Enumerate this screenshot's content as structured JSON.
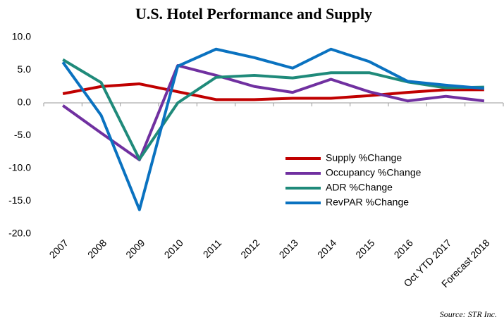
{
  "chart_data": {
    "type": "line",
    "title": "U.S. Hotel Performance and Supply",
    "source": "Source: STR Inc.",
    "categories": [
      "2007",
      "2008",
      "2009",
      "2010",
      "2011",
      "2012",
      "2013",
      "2014",
      "2015",
      "2016",
      "Oct YTD 2017",
      "Forecast 2018"
    ],
    "series": [
      {
        "name": "Supply %Change",
        "color": "#c00000",
        "values": [
          1.4,
          2.5,
          2.9,
          1.7,
          0.5,
          0.5,
          0.7,
          0.7,
          1.1,
          1.6,
          2.0,
          2.0
        ]
      },
      {
        "name": "Occupancy %Change",
        "color": "#7030a0",
        "values": [
          -0.4,
          -4.6,
          -8.7,
          5.7,
          4.2,
          2.5,
          1.6,
          3.6,
          1.7,
          0.3,
          1.0,
          0.3
        ]
      },
      {
        "name": "ADR %Change",
        "color": "#1f8a7a",
        "values": [
          6.6,
          3.1,
          -8.6,
          0.0,
          3.9,
          4.2,
          3.8,
          4.6,
          4.6,
          3.2,
          2.3,
          2.4
        ]
      },
      {
        "name": "RevPAR %Change",
        "color": "#0a72c0",
        "values": [
          6.2,
          -1.9,
          -16.3,
          5.6,
          8.2,
          6.9,
          5.3,
          8.2,
          6.3,
          3.3,
          2.7,
          2.2
        ]
      }
    ],
    "ylim": [
      -20,
      10
    ],
    "yticks": [
      {
        "value": 10,
        "label": "10.0"
      },
      {
        "value": 5,
        "label": "5.0"
      },
      {
        "value": 0,
        "label": "0.0"
      },
      {
        "value": -5,
        "label": "-5.0"
      },
      {
        "value": -10,
        "label": "-10.0"
      },
      {
        "value": -15,
        "label": "-15.0"
      },
      {
        "value": -20,
        "label": "-20.0"
      }
    ],
    "grid": false,
    "legend": "center-right"
  }
}
